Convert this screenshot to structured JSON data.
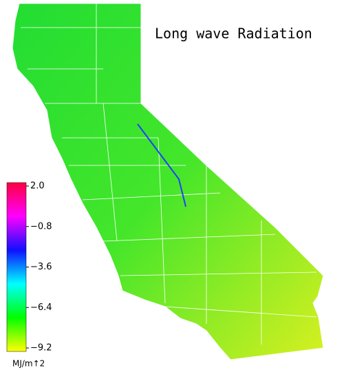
{
  "title": "Long wave Radiation",
  "colorbar": {
    "unit": "MJ/m↑2",
    "range": [
      -9.2,
      2.0
    ],
    "ticks": [
      {
        "value": 2.0,
        "label": "2.0"
      },
      {
        "value": -0.8,
        "label": "−0.8"
      },
      {
        "value": -3.6,
        "label": "−3.6"
      },
      {
        "value": -6.4,
        "label": "−6.4"
      },
      {
        "value": -9.2,
        "label": "−9.2"
      }
    ],
    "colors": [
      "#ffff00",
      "#00ff00",
      "#00ffff",
      "#1010ff",
      "#ff00ff",
      "#ff0040"
    ]
  }
}
